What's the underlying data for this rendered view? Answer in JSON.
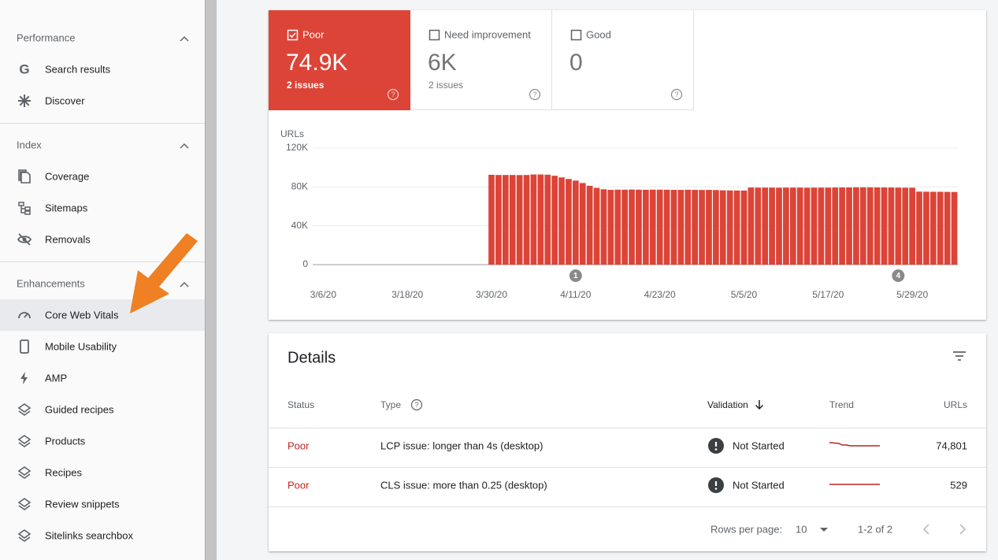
{
  "nav": [
    {
      "title": "Performance",
      "items": [
        "Search results",
        "Discover"
      ]
    },
    {
      "title": "Index",
      "items": [
        "Coverage",
        "Sitemaps",
        "Removals"
      ]
    },
    {
      "title": "Enhancements",
      "items": [
        "Core Web Vitals",
        "Mobile Usability",
        "AMP",
        "Guided recipes",
        "Products",
        "Recipes",
        "Review snippets",
        "Sitelinks searchbox"
      ]
    }
  ],
  "summary": {
    "tabs": [
      {
        "label": "Poor",
        "value": "74.9K",
        "sub": "2 issues",
        "checked": true
      },
      {
        "label": "Need improvement",
        "value": "6K",
        "sub": "2 issues",
        "checked": false
      },
      {
        "label": "Good",
        "value": "0",
        "checked": false
      }
    ]
  },
  "chart_data": {
    "type": "bar",
    "y_label": "URLs",
    "color": "#db4437",
    "grid": true,
    "ylim": [
      0,
      120000
    ],
    "yticks": [
      {
        "value": 0,
        "label": "0"
      },
      {
        "value": 40000,
        "label": "40K"
      },
      {
        "value": 80000,
        "label": "80K"
      },
      {
        "value": 120000,
        "label": "120K"
      }
    ],
    "categories": [
      null,
      "3/6/20",
      null,
      null,
      null,
      null,
      null,
      null,
      null,
      null,
      null,
      null,
      null,
      "3/18/20",
      null,
      null,
      null,
      null,
      null,
      null,
      null,
      null,
      null,
      null,
      null,
      "3/30/20",
      null,
      null,
      null,
      null,
      null,
      null,
      null,
      null,
      null,
      null,
      null,
      "4/11/20",
      null,
      null,
      null,
      null,
      null,
      null,
      null,
      null,
      null,
      null,
      null,
      "4/23/20",
      null,
      null,
      null,
      null,
      null,
      null,
      null,
      null,
      null,
      null,
      null,
      "5/5/20",
      null,
      null,
      null,
      null,
      null,
      null,
      null,
      null,
      null,
      null,
      null,
      "5/17/20",
      null,
      null,
      null,
      null,
      null,
      null,
      null,
      null,
      null,
      null,
      null,
      "5/29/20",
      null,
      null,
      null,
      null,
      null,
      null
    ],
    "values": [
      null,
      null,
      null,
      null,
      null,
      null,
      null,
      null,
      null,
      null,
      null,
      null,
      null,
      null,
      null,
      null,
      null,
      null,
      null,
      null,
      null,
      null,
      null,
      null,
      null,
      92500,
      92300,
      92300,
      92300,
      92200,
      92300,
      92800,
      92800,
      92600,
      91500,
      89800,
      88200,
      86500,
      84000,
      81200,
      79000,
      77600,
      77000,
      77200,
      77200,
      77300,
      77200,
      77100,
      77200,
      77200,
      77100,
      77000,
      77000,
      77100,
      77000,
      76900,
      77000,
      76800,
      76500,
      76400,
      76300,
      76300,
      79400,
      79300,
      79300,
      79300,
      79200,
      79300,
      79300,
      79300,
      79200,
      79300,
      79300,
      79300,
      79400,
      79500,
      79500,
      79600,
      79600,
      79600,
      79500,
      79500,
      79400,
      79300,
      79200,
      79200,
      75200,
      75100,
      75000,
      75000,
      74900,
      74800
    ],
    "annotations": [
      {
        "label": "1",
        "index": 37
      },
      {
        "label": "4",
        "index": 83
      }
    ]
  },
  "details": {
    "title": "Details",
    "columns": [
      "Status",
      "Type",
      "Validation",
      "Trend",
      "URLs"
    ],
    "rows": [
      {
        "status": "Poor",
        "type": "LCP issue: longer than 4s (desktop)",
        "validation": "Not Started",
        "urls": "74,801"
      },
      {
        "status": "Poor",
        "type": "CLS issue: more than 0.25 (desktop)",
        "validation": "Not Started",
        "urls": "529"
      }
    ],
    "rows_per_page_label": "Rows per page:",
    "rows_per_page": "10",
    "range": "1-2 of 2"
  }
}
